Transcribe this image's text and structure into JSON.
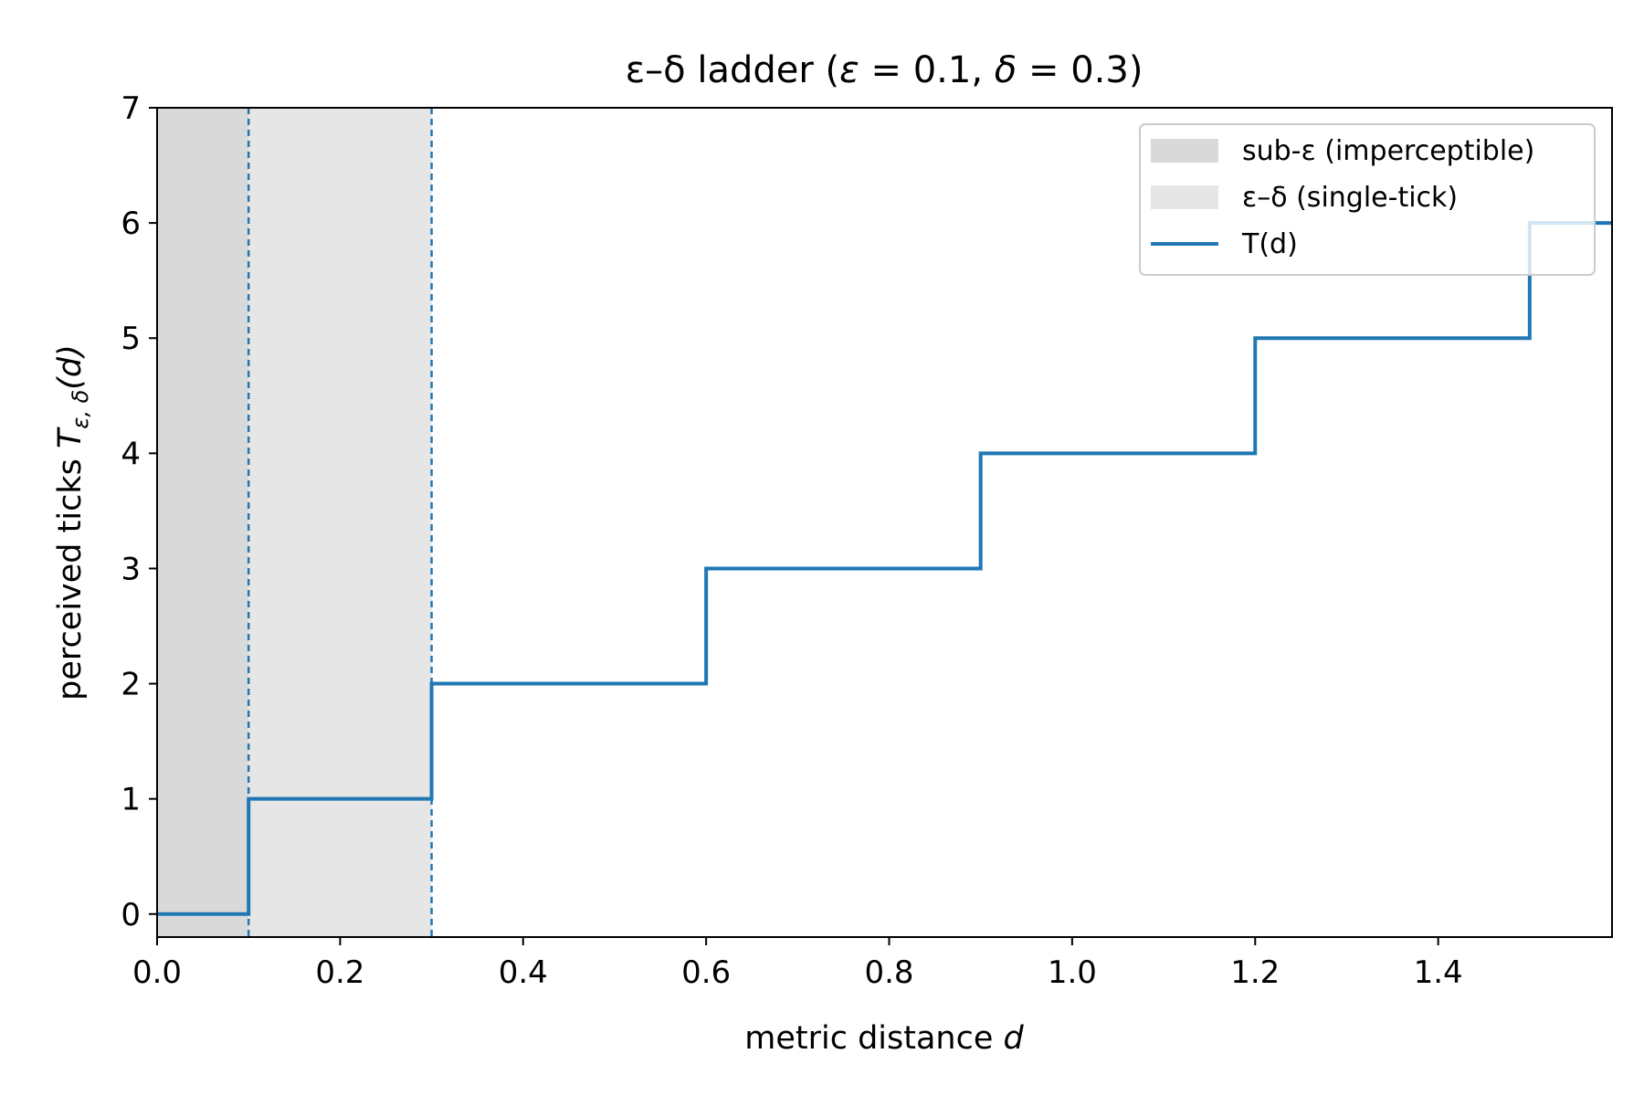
{
  "chart_data": {
    "type": "line",
    "title": {
      "prefix": "ε–δ ladder (",
      "eps_sym": "ε",
      "eps_eq": " = 0.1, ",
      "delta_sym": "δ",
      "delta_eq": " = 0.3)"
    },
    "xlabel": {
      "text": "metric distance ",
      "var": "d"
    },
    "ylabel": {
      "text": "perceived ticks ",
      "var": "T",
      "sub": "ε, δ",
      "arg": "(d)"
    },
    "xlim": [
      0,
      1.59
    ],
    "ylim": [
      -0.2,
      7
    ],
    "x_ticks": [
      {
        "value": 0.0,
        "label": "0.0"
      },
      {
        "value": 0.2,
        "label": "0.2"
      },
      {
        "value": 0.4,
        "label": "0.4"
      },
      {
        "value": 0.6,
        "label": "0.6"
      },
      {
        "value": 0.8,
        "label": "0.8"
      },
      {
        "value": 1.0,
        "label": "1.0"
      },
      {
        "value": 1.2,
        "label": "1.2"
      },
      {
        "value": 1.4,
        "label": "1.4"
      }
    ],
    "y_ticks": [
      {
        "value": 0,
        "label": "0"
      },
      {
        "value": 1,
        "label": "1"
      },
      {
        "value": 2,
        "label": "2"
      },
      {
        "value": 3,
        "label": "3"
      },
      {
        "value": 4,
        "label": "4"
      },
      {
        "value": 5,
        "label": "5"
      },
      {
        "value": 6,
        "label": "6"
      },
      {
        "value": 7,
        "label": "7"
      }
    ],
    "regions": [
      {
        "name": "sub-ε (imperceptible)",
        "x0": 0.0,
        "x1": 0.1,
        "color": "#d9d9d9"
      },
      {
        "name": "ε–δ (single-tick)",
        "x0": 0.1,
        "x1": 0.3,
        "color": "#e6e6e6"
      }
    ],
    "vlines": [
      {
        "x": 0.1,
        "color": "#1f77b4",
        "style": "dashed"
      },
      {
        "x": 0.3,
        "color": "#1f77b4",
        "style": "dashed"
      }
    ],
    "series": [
      {
        "name": "T(d)",
        "color": "#1f77b4",
        "step": "post",
        "points": [
          {
            "x": 0.0,
            "y": 0
          },
          {
            "x": 0.1,
            "y": 1
          },
          {
            "x": 0.3,
            "y": 2
          },
          {
            "x": 0.6,
            "y": 3
          },
          {
            "x": 0.9,
            "y": 4
          },
          {
            "x": 1.2,
            "y": 5
          },
          {
            "x": 1.5,
            "y": 6
          },
          {
            "x": 1.59,
            "y": 6
          }
        ]
      }
    ],
    "legend": {
      "placement": "top-right"
    },
    "grid": false
  }
}
